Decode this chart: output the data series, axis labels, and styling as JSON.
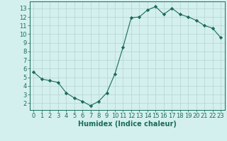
{
  "x": [
    0,
    1,
    2,
    3,
    4,
    5,
    6,
    7,
    8,
    9,
    10,
    11,
    12,
    13,
    14,
    15,
    16,
    17,
    18,
    19,
    20,
    21,
    22,
    23
  ],
  "y": [
    5.6,
    4.8,
    4.6,
    4.4,
    3.2,
    2.6,
    2.2,
    1.7,
    2.2,
    3.2,
    5.4,
    8.5,
    11.9,
    12.0,
    12.8,
    13.2,
    12.3,
    13.0,
    12.3,
    12.0,
    11.6,
    11.0,
    10.7,
    9.6
  ],
  "line_color": "#1a6b5a",
  "marker": "D",
  "marker_size": 2.2,
  "bg_color": "#d4f0ee",
  "grid_color": "#b8d8d4",
  "xlabel": "Humidex (Indice chaleur)",
  "xlabel_fontsize": 7,
  "tick_fontsize": 6,
  "xlim": [
    -0.5,
    23.5
  ],
  "ylim": [
    1.2,
    13.8
  ],
  "yticks": [
    2,
    3,
    4,
    5,
    6,
    7,
    8,
    9,
    10,
    11,
    12,
    13
  ],
  "xticks": [
    0,
    1,
    2,
    3,
    4,
    5,
    6,
    7,
    8,
    9,
    10,
    11,
    12,
    13,
    14,
    15,
    16,
    17,
    18,
    19,
    20,
    21,
    22,
    23
  ]
}
